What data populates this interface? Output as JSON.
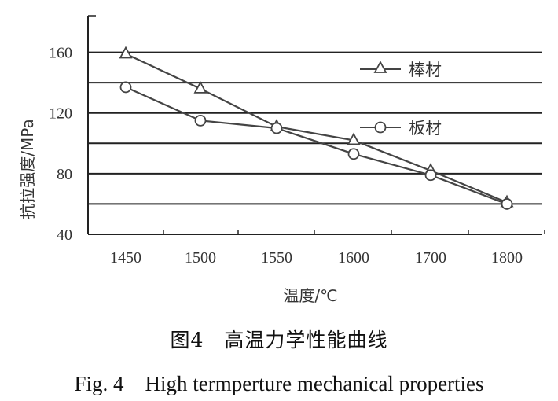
{
  "chart_data": {
    "type": "line",
    "categories": [
      "1450",
      "1500",
      "1550",
      "1600",
      "1700",
      "1800"
    ],
    "series": [
      {
        "name": "棒材",
        "marker": "triangle",
        "values": [
          159,
          136,
          111,
          102,
          82,
          61
        ]
      },
      {
        "name": "板材",
        "marker": "circle",
        "values": [
          137,
          115,
          110,
          93,
          79,
          60
        ]
      }
    ],
    "xlabel": "温度/℃",
    "ylabel": "抗拉强度/MPa",
    "yticks": [
      40,
      80,
      120,
      160
    ],
    "ylim": [
      40,
      180
    ],
    "grid": true,
    "legend_position": "top-right",
    "colors": {
      "line": "#444444",
      "grid": "#222222",
      "text": "#333333"
    }
  },
  "caption": {
    "chinese": "图4　高温力学性能曲线",
    "english": "Fig. 4　High termperture mechanical properties"
  }
}
